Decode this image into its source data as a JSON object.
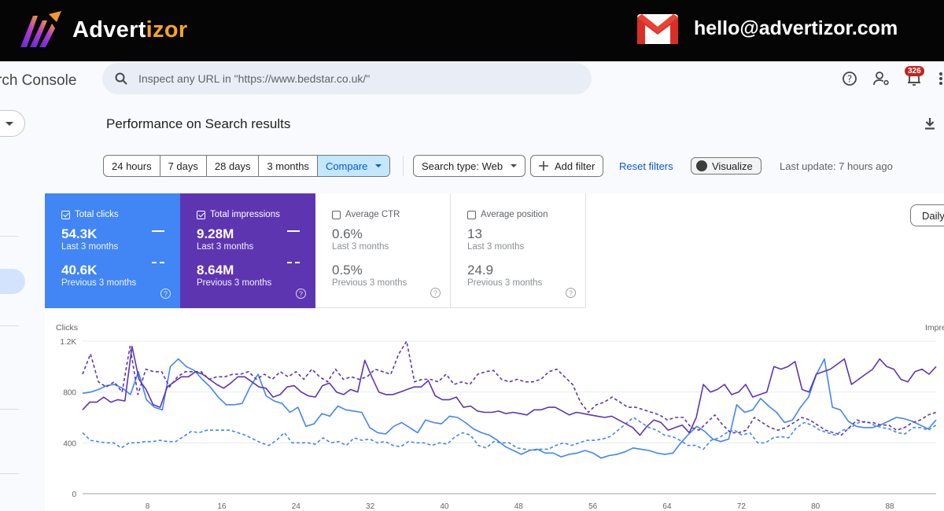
{
  "banner": {
    "brand_name": "Advert",
    "brand_accent": "izor",
    "email": "hello@advertizor.com"
  },
  "app": {
    "product_name": "rch Console",
    "search": {
      "placeholder": "Inspect any URL in \"https://www.bedstar.co.uk/\""
    },
    "notifications_count": "326",
    "page_title": "Performance on Search results",
    "date_ranges": [
      "24 hours",
      "7 days",
      "28 days",
      "3 months"
    ],
    "compare_label": "Compare",
    "search_type_label": "Search type: Web",
    "add_filter_label": "Add filter",
    "reset_filters_label": "Reset filters",
    "visualize_label": "Visualize",
    "last_update": "Last update: 7 hours ago",
    "granularity": "Daily",
    "metrics": [
      {
        "label": "Total clicks",
        "value": "54.3K",
        "period": "Last 3 months",
        "prev_value": "40.6K",
        "prev_period": "Previous 3 months",
        "selected": true
      },
      {
        "label": "Total impressions",
        "value": "9.28M",
        "period": "Last 3 months",
        "prev_value": "8.64M",
        "prev_period": "Previous 3 months",
        "selected": true
      },
      {
        "label": "Average CTR",
        "value": "0.6%",
        "period": "Last 3 months",
        "prev_value": "0.5%",
        "prev_period": "Previous 3 months",
        "selected": false
      },
      {
        "label": "Average position",
        "value": "13",
        "period": "Last 3 months",
        "prev_value": "24.9",
        "prev_period": "Previous 3 months",
        "selected": false
      }
    ]
  },
  "colors": {
    "clicks": "#4285f4",
    "impressions": "#5e35b1",
    "accent": "#0b57d0"
  },
  "chart_data": {
    "type": "line",
    "ylabel_left": "Clicks",
    "ylabel_right": "Impre",
    "y_ticks": [
      "0",
      "400",
      "800",
      "1.2K"
    ],
    "ylim": [
      0,
      1200
    ],
    "x_ticks": [
      8,
      16,
      24,
      32,
      40,
      48,
      56,
      64,
      72,
      80,
      88
    ],
    "xlim": [
      1,
      93
    ],
    "grid": true,
    "series": [
      {
        "name": "",
        "style": "solid",
        "color": "#4285f4",
        "values": [
          790,
          800,
          820,
          850,
          860,
          830,
          780,
          960,
          740,
          680,
          660,
          1000,
          1060,
          1000,
          970,
          900,
          840,
          760,
          700,
          700,
          710,
          840,
          940,
          770,
          730,
          710,
          640,
          680,
          530,
          550,
          630,
          610,
          690,
          660,
          650,
          640,
          520,
          480,
          470,
          530,
          560,
          520,
          480,
          580,
          560,
          550,
          610,
          600,
          560,
          510,
          480,
          460,
          420,
          370,
          340,
          310,
          340,
          350,
          320,
          320,
          290,
          310,
          320,
          340,
          320,
          280,
          300,
          310,
          330,
          360,
          350,
          340,
          320,
          310,
          320,
          400,
          470,
          530,
          490,
          430,
          410,
          430,
          700,
          640,
          660,
          750,
          690,
          640,
          560,
          580,
          680,
          760,
          940,
          1060,
          680,
          660,
          570,
          530,
          520,
          520,
          540,
          570,
          600,
          590,
          570,
          540,
          510,
          580
        ]
      },
      {
        "name": "",
        "style": "dashed",
        "color": "#4285f4",
        "values": [
          480,
          420,
          410,
          400,
          400,
          360,
          400,
          400,
          410,
          410,
          420,
          410,
          410,
          450,
          490,
          480,
          500,
          500,
          500,
          500,
          480,
          460,
          430,
          400,
          380,
          420,
          480,
          400,
          400,
          400,
          390,
          440,
          400,
          410,
          380,
          440,
          420,
          430,
          400,
          410,
          380,
          370,
          410,
          400,
          400,
          380,
          400,
          390,
          450,
          480,
          460,
          380,
          360,
          410,
          400,
          400,
          360,
          350,
          340,
          350,
          350,
          380,
          400,
          380,
          400,
          420,
          420,
          430,
          450,
          500,
          550,
          600,
          560,
          520,
          500,
          460,
          450,
          420,
          380,
          380,
          350,
          420,
          440,
          480,
          500,
          460,
          480,
          400,
          400,
          440,
          450,
          440,
          520,
          560,
          540,
          500,
          480,
          460,
          500,
          520,
          560,
          570,
          540,
          520,
          510,
          480,
          470,
          520,
          520,
          500,
          540
        ]
      },
      {
        "name": "",
        "style": "solid",
        "color": "#5e35b1",
        "values": [
          660,
          720,
          720,
          760,
          720,
          740,
          730,
          1160,
          900,
          820,
          700,
          680,
          840,
          880,
          920,
          920,
          960,
          940,
          900,
          860,
          830,
          870,
          920,
          920,
          880,
          840,
          830,
          760,
          780,
          840,
          850,
          800,
          770,
          760,
          850,
          870,
          800,
          780,
          820,
          800,
          1050,
          920,
          800,
          780,
          780,
          800,
          820,
          840,
          840,
          890,
          770,
          740,
          740,
          760,
          680,
          690,
          650,
          640,
          640,
          650,
          630,
          640,
          630,
          620,
          660,
          660,
          680,
          680,
          650,
          620,
          640,
          630,
          620,
          610,
          600,
          610,
          580,
          550,
          520,
          460,
          530,
          580,
          560,
          500,
          520,
          540,
          480,
          600,
          860,
          800,
          820,
          860,
          780,
          800,
          860,
          760,
          780,
          800,
          1000,
          980,
          1000,
          1040,
          820,
          800,
          940,
          960,
          980,
          1020,
          1060,
          860,
          900,
          940,
          980,
          1060,
          1000,
          980,
          900,
          880,
          960,
          980,
          940,
          1000
        ]
      },
      {
        "name": "",
        "style": "dashed",
        "color": "#5e35b1",
        "values": [
          940,
          1100,
          880,
          840,
          880,
          800,
          1160,
          780,
          980,
          960,
          960,
          840,
          920,
          960,
          960,
          960,
          900,
          920,
          920,
          940,
          940,
          960,
          900,
          940,
          900,
          960,
          920,
          960,
          900,
          980,
          920,
          880,
          980,
          900,
          920,
          900,
          920,
          980,
          960,
          940,
          1100,
          1200,
          880,
          900,
          900,
          880,
          940,
          860,
          880,
          860,
          940,
          960,
          970,
          900,
          880,
          900,
          880,
          880,
          900,
          960,
          980,
          920,
          860,
          720,
          640,
          700,
          720,
          760,
          720,
          680,
          680,
          660,
          640,
          620,
          580,
          600,
          600,
          520,
          500,
          560,
          620,
          540,
          480,
          480,
          500,
          600,
          560,
          520,
          500,
          520,
          560,
          600,
          580,
          540,
          500,
          480,
          460,
          520,
          580,
          560,
          560,
          540,
          540,
          500,
          520,
          560,
          580,
          620,
          640
        ]
      }
    ]
  }
}
